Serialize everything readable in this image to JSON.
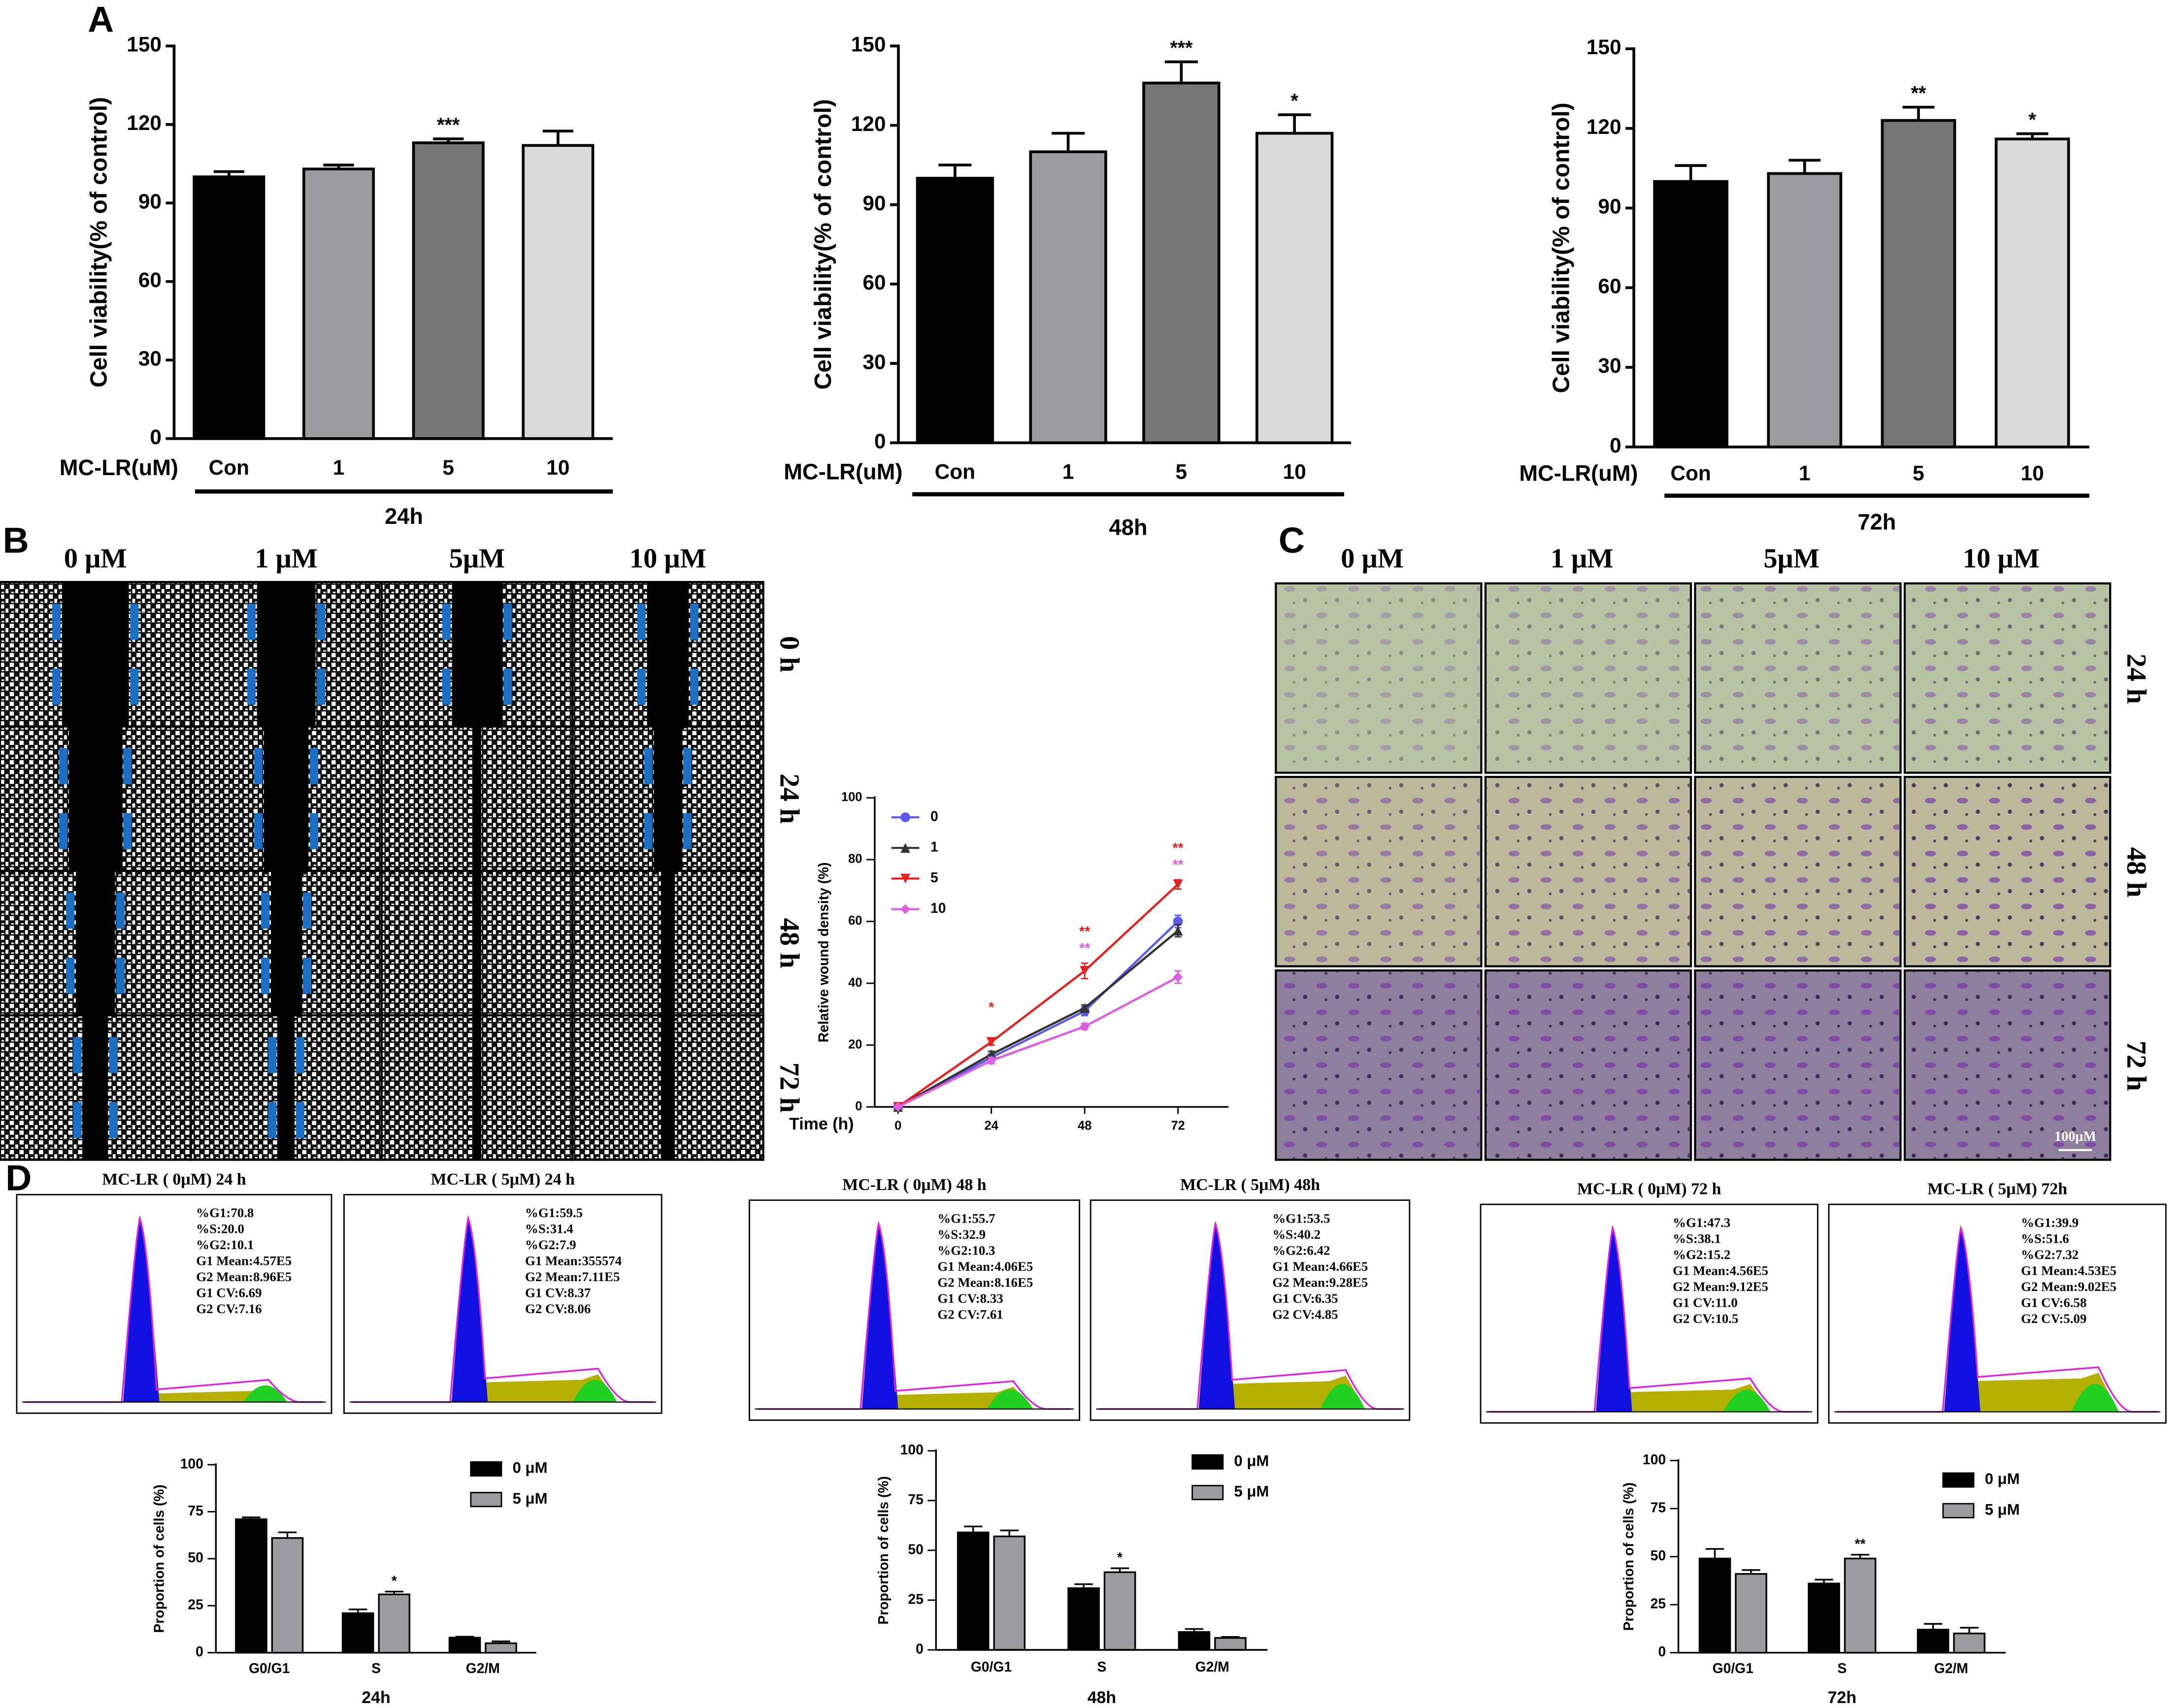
{
  "panel_labels": [
    "A",
    "B",
    "C",
    "D"
  ],
  "chart_data": [
    {
      "type": "bar",
      "y_label": "Cell viability(% of control)",
      "x_label": "MC-LR(uM)",
      "group_label": "24h",
      "categories": [
        "Con",
        "1",
        "5",
        "10"
      ],
      "values": [
        100,
        103,
        113,
        112
      ],
      "errors": [
        2,
        1.5,
        1.5,
        5.5
      ],
      "significance": [
        null,
        null,
        "***",
        null
      ],
      "colors": [
        "#000000",
        "#9b9ba0",
        "#767676",
        "#d9d9d9"
      ],
      "ylim": [
        0,
        150
      ],
      "yticks": [
        0,
        30,
        60,
        90,
        120,
        150
      ]
    },
    {
      "type": "bar",
      "y_label": "Cell viability(% of control)",
      "x_label": "MC-LR(uM)",
      "group_label": "48h",
      "categories": [
        "Con",
        "1",
        "5",
        "10"
      ],
      "values": [
        100,
        110,
        136,
        117
      ],
      "errors": [
        5,
        7,
        8,
        7
      ],
      "significance": [
        null,
        null,
        "***",
        "*"
      ],
      "colors": [
        "#000000",
        "#9b9ba0",
        "#767676",
        "#d9d9d9"
      ],
      "ylim": [
        0,
        150
      ],
      "yticks": [
        0,
        30,
        60,
        90,
        120,
        150
      ]
    },
    {
      "type": "bar",
      "y_label": "Cell viability(% of control)",
      "x_label": "MC-LR(uM)",
      "group_label": "72h",
      "categories": [
        "Con",
        "1",
        "5",
        "10"
      ],
      "values": [
        100,
        103,
        123,
        116
      ],
      "errors": [
        6,
        5,
        5,
        2
      ],
      "significance": [
        null,
        null,
        "**",
        "*"
      ],
      "colors": [
        "#000000",
        "#9b9ba0",
        "#767676",
        "#d9d9d9"
      ],
      "ylim": [
        0,
        150
      ],
      "yticks": [
        0,
        30,
        60,
        90,
        120,
        150
      ]
    },
    {
      "type": "line",
      "y_label": "Relative wound density (%)",
      "x_label": "Time (h)",
      "x": [
        0,
        24,
        48,
        72
      ],
      "xlim": [
        -6,
        85
      ],
      "xticks": [
        0,
        24,
        48,
        72
      ],
      "ylim": [
        0,
        100
      ],
      "yticks": [
        0,
        20,
        40,
        60,
        80,
        100
      ],
      "series": [
        {
          "name": "0",
          "color": "#5a5af0",
          "marker": "circle",
          "values": [
            0,
            16,
            31,
            60
          ],
          "errors": [
            0,
            1,
            1.5,
            2
          ],
          "significance": [
            null,
            null,
            null,
            null
          ]
        },
        {
          "name": "1",
          "color": "#333333",
          "marker": "triangle",
          "values": [
            0,
            17,
            32,
            57
          ],
          "errors": [
            0,
            1,
            1,
            2
          ],
          "significance": [
            null,
            null,
            null,
            null
          ]
        },
        {
          "name": "5",
          "color": "#e8201f",
          "marker": "triangle-down",
          "values": [
            0,
            21,
            44,
            72
          ],
          "errors": [
            0,
            1,
            2.5,
            1.5
          ],
          "significance": [
            null,
            "*",
            "**",
            "**"
          ]
        },
        {
          "name": "10",
          "color": "#e05ce0",
          "marker": "diamond",
          "values": [
            0,
            15,
            26,
            42
          ],
          "errors": [
            0,
            1,
            1,
            2
          ],
          "significance": [
            null,
            null,
            "**",
            "**"
          ]
        }
      ]
    },
    {
      "type": "grouped_bar",
      "y_label": "Proportion of cells (%)",
      "group_label": "24h",
      "categories": [
        "G0/G1",
        "S",
        "G2/M"
      ],
      "ylim": [
        0,
        100
      ],
      "yticks": [
        0,
        25,
        50,
        75,
        100
      ],
      "series": [
        {
          "name": "0 μM",
          "color": "#000000",
          "values": [
            71,
            21,
            8
          ],
          "errors": [
            1,
            2,
            0.5
          ],
          "significance": [
            null,
            null,
            null
          ]
        },
        {
          "name": "5 μM",
          "color": "#9b9ba0",
          "values": [
            61,
            31,
            5
          ],
          "errors": [
            3,
            1.5,
            1
          ],
          "significance": [
            null,
            "*",
            null
          ]
        }
      ]
    },
    {
      "type": "grouped_bar",
      "y_label": "Proportion of cells (%)",
      "group_label": "48h",
      "categories": [
        "G0/G1",
        "S",
        "G2/M"
      ],
      "ylim": [
        0,
        100
      ],
      "yticks": [
        0,
        25,
        50,
        75,
        100
      ],
      "series": [
        {
          "name": "0 μM",
          "color": "#000000",
          "values": [
            59,
            31,
            9
          ],
          "errors": [
            3,
            2,
            1.5
          ],
          "significance": [
            null,
            null,
            null
          ]
        },
        {
          "name": "5 μM",
          "color": "#9b9ba0",
          "values": [
            57,
            39,
            6
          ],
          "errors": [
            3,
            2,
            0.5
          ],
          "significance": [
            null,
            "*",
            null
          ]
        }
      ]
    },
    {
      "type": "grouped_bar",
      "y_label": "Proportion of cells (%)",
      "group_label": "72h",
      "categories": [
        "G0/G1",
        "S",
        "G2/M"
      ],
      "ylim": [
        0,
        100
      ],
      "yticks": [
        0,
        25,
        50,
        75,
        100
      ],
      "series": [
        {
          "name": "0 μM",
          "color": "#000000",
          "values": [
            49,
            36,
            12
          ],
          "errors": [
            5,
            2,
            3
          ],
          "significance": [
            null,
            null,
            null
          ]
        },
        {
          "name": "5 μM",
          "color": "#9b9ba0",
          "values": [
            41,
            49,
            10
          ],
          "errors": [
            2,
            2,
            3
          ],
          "significance": [
            null,
            "**",
            null
          ]
        }
      ]
    }
  ],
  "wound_images": {
    "columns": [
      "0 μM",
      "1 μM",
      "5μM",
      "10 μM"
    ],
    "rows": [
      "0 h",
      "24 h",
      "48 h",
      "72 h"
    ]
  },
  "transwell_images": {
    "columns": [
      "0 μM",
      "1 μM",
      "5μM",
      "10 μM"
    ],
    "rows": [
      "24 h",
      "48 h",
      "72 h"
    ],
    "scale_bar": "100μM"
  },
  "flow_histograms": [
    {
      "title": "MC-LR ( 0μM) 24 h",
      "stats": [
        "%G1:70.8",
        "%S:20.0",
        "%G2:10.1",
        "G1 Mean:4.57E5",
        "G2 Mean:8.96E5",
        "G1 CV:6.69",
        "G2 CV:7.16"
      ]
    },
    {
      "title": "MC-LR ( 5μM) 24 h",
      "stats": [
        "%G1:59.5",
        "%S:31.4",
        "%G2:7.9",
        "G1 Mean:355574",
        "G2 Mean:7.11E5",
        "G1 CV:8.37",
        "G2 CV:8.06"
      ]
    },
    {
      "title": "MC-LR ( 0μM) 48 h",
      "stats": [
        "%G1:55.7",
        "%S:32.9",
        "%G2:10.3",
        "G1 Mean:4.06E5",
        "G2 Mean:8.16E5",
        "G1 CV:8.33",
        "G2 CV:7.61"
      ]
    },
    {
      "title": "MC-LR ( 5μM) 48h",
      "stats": [
        "%G1:53.5",
        "%S:40.2",
        "%G2:6.42",
        "G1 Mean:4.66E5",
        "G2 Mean:9.28E5",
        "G1 CV:6.35",
        "G2 CV:4.85"
      ]
    },
    {
      "title": "MC-LR ( 0μM) 72 h",
      "stats": [
        "%G1:47.3",
        "%S:38.1",
        "%G2:15.2",
        "G1 Mean:4.56E5",
        "G2 Mean:9.12E5",
        "G1 CV:11.0",
        "G2 CV:10.5"
      ]
    },
    {
      "title": "MC-LR ( 5μM) 72h",
      "stats": [
        "%G1:39.9",
        "%S:51.6",
        "%G2:7.32",
        "G1 Mean:4.53E5",
        "G2 Mean:9.02E5",
        "G1 CV:6.58",
        "G2 CV:5.09"
      ]
    }
  ]
}
